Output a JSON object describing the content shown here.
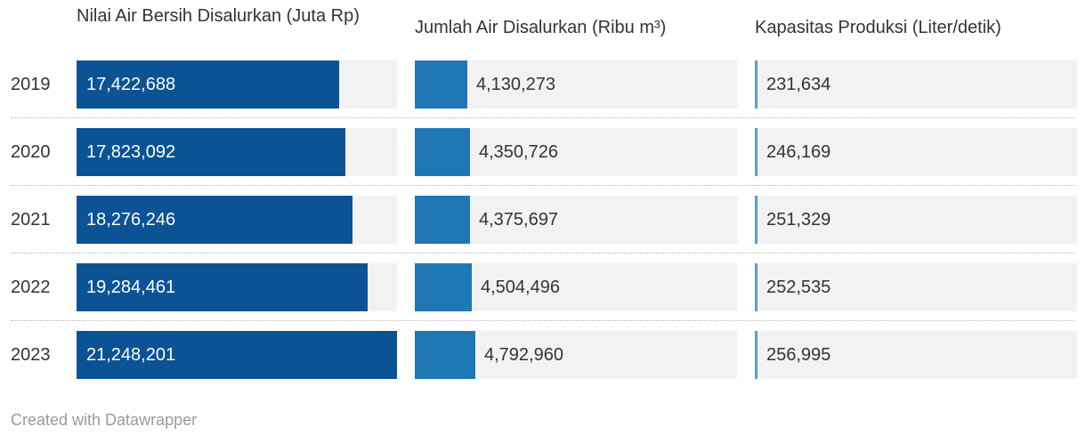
{
  "chart_data": {
    "type": "bar",
    "categories": [
      "2019",
      "2020",
      "2021",
      "2022",
      "2023"
    ],
    "series": [
      {
        "name": "Nilai Air Bersih Disalurkan (Juta Rp)",
        "values": [
          17422688,
          17823092,
          18276246,
          19284461,
          21248201
        ],
        "labels": [
          "17,422,688",
          "17,823,092",
          "18,276,246",
          "19,284,461",
          "21,248,201"
        ],
        "color": "#0b5394",
        "label_position": "inside"
      },
      {
        "name": "Jumlah Air Disalurkan (Ribu m³)",
        "values": [
          4130273,
          4350726,
          4375697,
          4504496,
          4792960
        ],
        "labels": [
          "4,130,273",
          "4,350,726",
          "4,375,697",
          "4,504,496",
          "4,792,960"
        ],
        "color": "#1f78b4",
        "label_position": "outside"
      },
      {
        "name": "Kapasitas Produksi (Liter/detik)",
        "values": [
          231634,
          246169,
          251329,
          252535,
          256995
        ],
        "labels": [
          "231,634",
          "246,169",
          "251,329",
          "252,535",
          "256,995"
        ],
        "color": "#5b9bd5",
        "label_position": "outside"
      }
    ],
    "xlim": [
      [
        0,
        21248201
      ],
      [
        0,
        25500000
      ],
      [
        0,
        115000000
      ]
    ],
    "grid": false,
    "legend": "none"
  },
  "footer": {
    "credit": "Created with Datawrapper"
  }
}
